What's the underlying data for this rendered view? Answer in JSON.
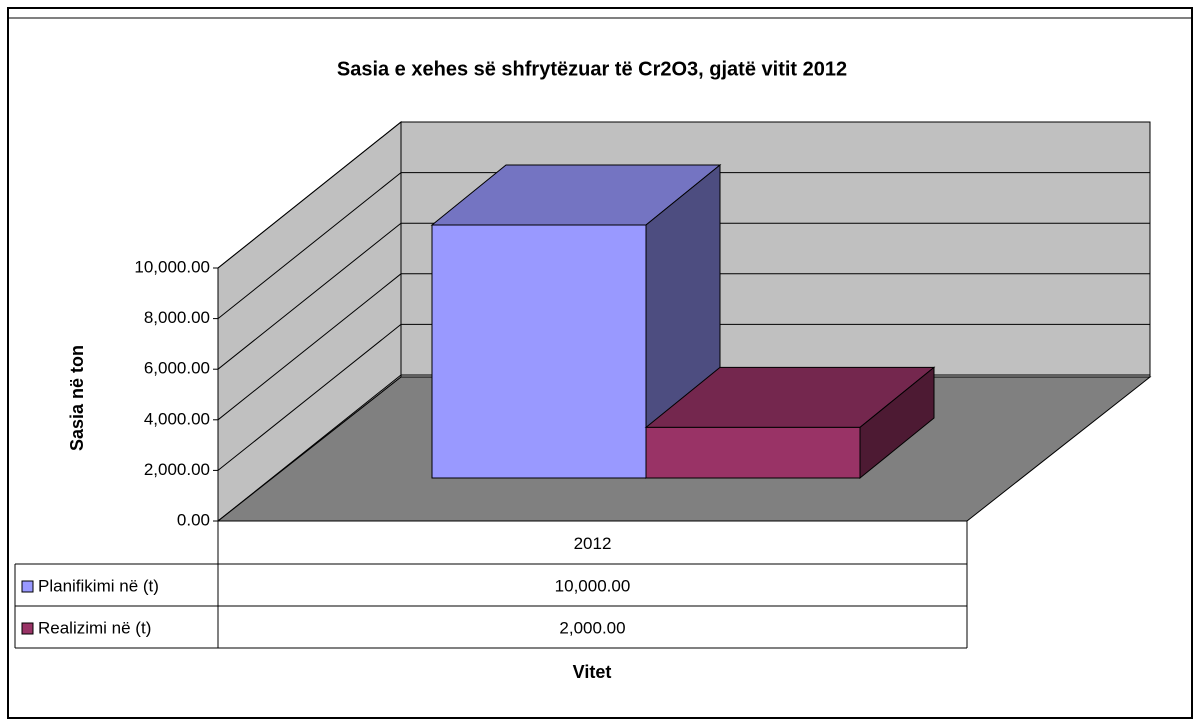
{
  "chart_data": {
    "type": "bar3d",
    "title": "Sasia e xehes së shfrytëzuar të Cr2O3, gjatë vitit 2012",
    "y_label": "Sasia në ton",
    "x_label": "Vitet",
    "categories": [
      "2012"
    ],
    "series": [
      {
        "name": "Planifikimi në (t)",
        "color": "#9999ff",
        "values": [
          10000
        ],
        "value_labels": [
          "10,000.00"
        ]
      },
      {
        "name": "Realizimi në (t)",
        "color": "#993366",
        "values": [
          2000
        ],
        "value_labels": [
          "2,000.00"
        ]
      }
    ],
    "ylim": [
      0,
      10000
    ],
    "yticks": [
      {
        "value": 0,
        "label": "0.00"
      },
      {
        "value": 2000,
        "label": "2,000.00"
      },
      {
        "value": 4000,
        "label": "4,000.00"
      },
      {
        "value": 6000,
        "label": "6,000.00"
      },
      {
        "value": 8000,
        "label": "8,000.00"
      },
      {
        "value": 10000,
        "label": "10,000.00"
      }
    ],
    "grid": true
  }
}
